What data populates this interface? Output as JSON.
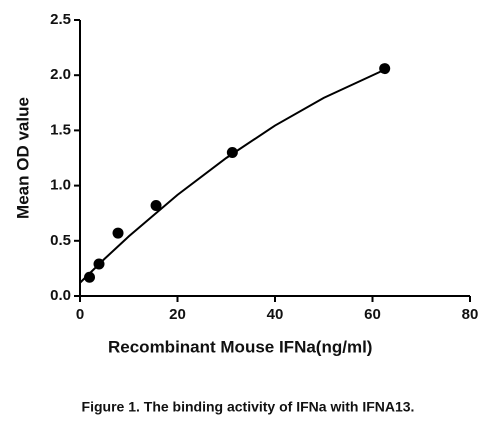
{
  "chart_data": {
    "type": "scatter",
    "x_label": "Recombinant Mouse IFNa(ng/ml)",
    "y_label": "Mean OD value",
    "caption": "Figure 1. The binding activity of IFNa with IFNA13.",
    "x": [
      1.95,
      3.9,
      7.8,
      15.6,
      31.25,
      62.5
    ],
    "values": [
      0.17,
      0.29,
      0.57,
      0.82,
      1.3,
      2.06
    ],
    "color": "#000000",
    "curve": {
      "x": [
        0,
        5,
        10,
        20,
        30,
        40,
        50,
        62.5
      ],
      "values": [
        0.12,
        0.335,
        0.54,
        0.916,
        1.25,
        1.544,
        1.795,
        2.05
      ]
    },
    "xlim": [
      0,
      80
    ],
    "xticks": [
      0,
      20,
      40,
      60,
      80
    ],
    "ylim": [
      0,
      2.5
    ],
    "yticks": [
      {
        "value": 0,
        "label": "0.0"
      },
      {
        "value": 0.5,
        "label": "0.5"
      },
      {
        "value": 1,
        "label": "1.0"
      },
      {
        "value": 1.5,
        "label": "1.5"
      },
      {
        "value": 2,
        "label": "2.0"
      },
      {
        "value": 2.5,
        "label": "2.5"
      }
    ],
    "grid": false
  }
}
